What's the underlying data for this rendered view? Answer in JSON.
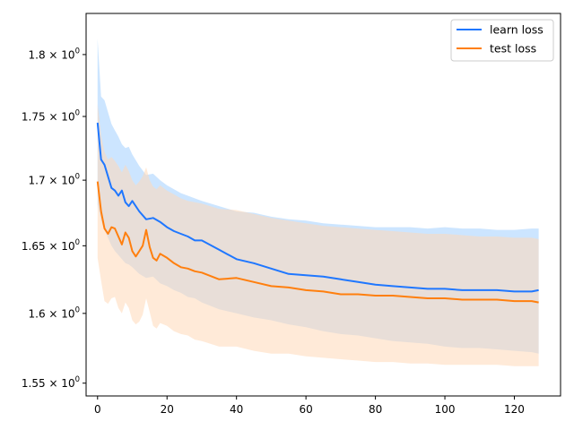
{
  "chart_data": {
    "type": "line",
    "title": "",
    "xlabel": "",
    "ylabel": "",
    "yscale": "log",
    "xlim": [
      -3.3,
      133.3
    ],
    "ylim": [
      1.541,
      1.834
    ],
    "xticks": [
      0,
      20,
      40,
      60,
      80,
      100,
      120
    ],
    "yticks": [
      {
        "value": 1.55,
        "mantissa": "1.55",
        "base": "10",
        "exp": "0"
      },
      {
        "value": 1.6,
        "mantissa": "1.6",
        "base": "10",
        "exp": "0"
      },
      {
        "value": 1.65,
        "mantissa": "1.65",
        "base": "10",
        "exp": "0"
      },
      {
        "value": 1.7,
        "mantissa": "1.7",
        "base": "10",
        "exp": "0"
      },
      {
        "value": 1.75,
        "mantissa": "1.75",
        "base": "10",
        "exp": "0"
      },
      {
        "value": 1.8,
        "mantissa": "1.8",
        "base": "10",
        "exp": "0"
      }
    ],
    "grid": false,
    "legend_position": "top-right",
    "series": [
      {
        "name": "learn loss",
        "color": "#1f77ff",
        "band_color": "#aad4ff",
        "x": [
          0,
          1,
          2,
          4,
          5,
          6,
          7,
          8,
          9,
          10,
          12,
          14,
          16,
          18,
          20,
          22,
          24,
          26,
          28,
          30,
          35,
          40,
          45,
          50,
          55,
          60,
          65,
          70,
          75,
          80,
          85,
          90,
          95,
          100,
          105,
          110,
          115,
          120,
          125,
          127
        ],
        "values": [
          1.745,
          1.716,
          1.712,
          1.694,
          1.692,
          1.688,
          1.692,
          1.683,
          1.68,
          1.684,
          1.676,
          1.67,
          1.671,
          1.668,
          1.664,
          1.661,
          1.659,
          1.657,
          1.654,
          1.654,
          1.647,
          1.64,
          1.637,
          1.633,
          1.629,
          1.628,
          1.627,
          1.625,
          1.623,
          1.621,
          1.62,
          1.619,
          1.618,
          1.618,
          1.617,
          1.617,
          1.617,
          1.616,
          1.616,
          1.617
        ],
        "upper": [
          1.813,
          1.766,
          1.763,
          1.744,
          1.739,
          1.734,
          1.728,
          1.725,
          1.726,
          1.72,
          1.711,
          1.704,
          1.705,
          1.7,
          1.696,
          1.693,
          1.69,
          1.688,
          1.686,
          1.684,
          1.68,
          1.676,
          1.675,
          1.672,
          1.67,
          1.669,
          1.667,
          1.666,
          1.665,
          1.664,
          1.664,
          1.664,
          1.663,
          1.664,
          1.663,
          1.663,
          1.662,
          1.662,
          1.663,
          1.663
        ],
        "lower": [
          1.681,
          1.669,
          1.662,
          1.65,
          1.646,
          1.643,
          1.64,
          1.637,
          1.636,
          1.634,
          1.629,
          1.626,
          1.627,
          1.622,
          1.62,
          1.617,
          1.615,
          1.612,
          1.611,
          1.608,
          1.603,
          1.6,
          1.597,
          1.595,
          1.592,
          1.59,
          1.587,
          1.585,
          1.584,
          1.582,
          1.58,
          1.579,
          1.578,
          1.576,
          1.575,
          1.575,
          1.574,
          1.573,
          1.572,
          1.571
        ]
      },
      {
        "name": "test loss",
        "color": "#ff7f0e",
        "band_color": "#ffd8b8",
        "x": [
          0,
          1,
          2,
          3,
          4,
          5,
          6,
          7,
          8,
          9,
          10,
          11,
          12,
          13,
          14,
          15,
          16,
          17,
          18,
          20,
          22,
          24,
          26,
          28,
          30,
          35,
          40,
          45,
          50,
          55,
          60,
          65,
          70,
          75,
          80,
          85,
          90,
          95,
          100,
          105,
          110,
          115,
          120,
          125,
          127
        ],
        "values": [
          1.699,
          1.676,
          1.663,
          1.659,
          1.664,
          1.663,
          1.657,
          1.651,
          1.66,
          1.656,
          1.646,
          1.642,
          1.646,
          1.65,
          1.662,
          1.649,
          1.641,
          1.639,
          1.644,
          1.641,
          1.637,
          1.634,
          1.633,
          1.631,
          1.63,
          1.625,
          1.626,
          1.623,
          1.62,
          1.619,
          1.617,
          1.616,
          1.614,
          1.614,
          1.613,
          1.613,
          1.612,
          1.611,
          1.611,
          1.61,
          1.61,
          1.61,
          1.609,
          1.609,
          1.608
        ],
        "upper": [
          1.76,
          1.735,
          1.722,
          1.716,
          1.718,
          1.715,
          1.711,
          1.706,
          1.712,
          1.707,
          1.7,
          1.696,
          1.699,
          1.703,
          1.71,
          1.7,
          1.695,
          1.693,
          1.696,
          1.692,
          1.689,
          1.686,
          1.684,
          1.683,
          1.682,
          1.678,
          1.677,
          1.674,
          1.671,
          1.669,
          1.667,
          1.665,
          1.664,
          1.663,
          1.662,
          1.661,
          1.66,
          1.659,
          1.659,
          1.658,
          1.657,
          1.657,
          1.656,
          1.656,
          1.655
        ],
        "lower": [
          1.641,
          1.624,
          1.609,
          1.607,
          1.611,
          1.612,
          1.604,
          1.6,
          1.608,
          1.604,
          1.595,
          1.592,
          1.594,
          1.599,
          1.611,
          1.601,
          1.591,
          1.589,
          1.593,
          1.591,
          1.587,
          1.585,
          1.584,
          1.581,
          1.58,
          1.576,
          1.576,
          1.573,
          1.571,
          1.571,
          1.569,
          1.568,
          1.567,
          1.566,
          1.565,
          1.565,
          1.564,
          1.564,
          1.563,
          1.563,
          1.563,
          1.563,
          1.562,
          1.562,
          1.562
        ]
      }
    ]
  }
}
